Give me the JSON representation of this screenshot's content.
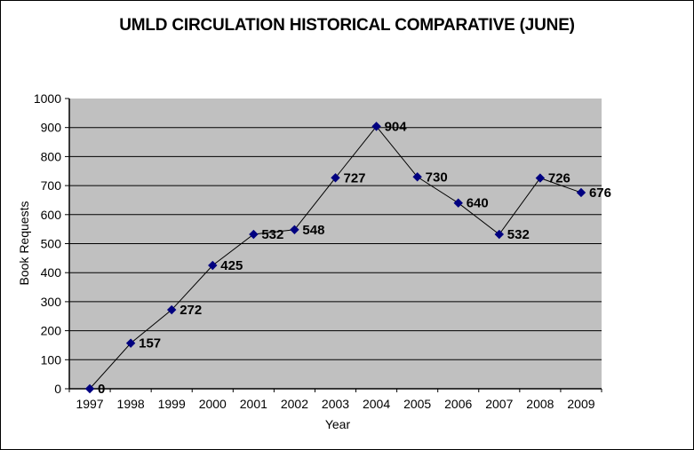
{
  "chart_data": {
    "type": "line",
    "title": "UMLD CIRCULATION HISTORICAL COMPARATIVE (JUNE)",
    "xlabel": "Year",
    "ylabel": "Book Requests",
    "categories": [
      "1997",
      "1998",
      "1999",
      "2000",
      "2001",
      "2002",
      "2003",
      "2004",
      "2005",
      "2006",
      "2007",
      "2008",
      "2009"
    ],
    "series": [
      {
        "name": "Book Requests",
        "values": [
          0,
          157,
          272,
          425,
          532,
          548,
          727,
          904,
          730,
          640,
          532,
          726,
          676
        ]
      }
    ],
    "ylim": [
      0,
      1000
    ],
    "ytick_step": 100,
    "grid": "horizontal",
    "legend_position": "none",
    "data_labels_shown": true,
    "marker_shape": "diamond",
    "colors": {
      "background": "#FFFFFF",
      "border": "#000000",
      "plot_area_bg": "#C0C0C0",
      "gridline": "#000000",
      "series_line": "#000000",
      "marker": "#000080",
      "text": "#000000"
    }
  }
}
